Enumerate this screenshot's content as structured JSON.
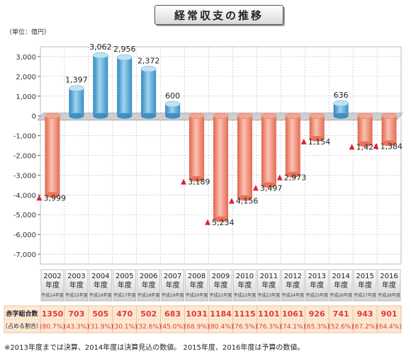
{
  "title": "経常収支の推移",
  "unit_label": "（単位：億円）",
  "footnote": "※2013年度までは決算、2014年度は決算見込の数値。 2015年度、2016年度は予算の数値。",
  "table": {
    "row1_label": "赤字組合数",
    "row2_label": "（占める割合）",
    "counts": [
      "1350",
      "703",
      "505",
      "470",
      "502",
      "683",
      "1031",
      "1184",
      "1115",
      "1101",
      "1061",
      "926",
      "741",
      "943",
      "901"
    ],
    "shares": [
      "(80.7%)",
      "(43.3%)",
      "(31.9%)",
      "(30.1%)",
      "(32.6%)",
      "(45.0%)",
      "(68.9%)",
      "(80.4%)",
      "(76.5%)",
      "(76.3%)",
      "(74.1%)",
      "(65.3%)",
      "(52.6%)",
      "(67.2%)",
      "(64.4%)"
    ]
  },
  "colors": {
    "positive": "#5aa9d6",
    "negative": "#ef8a74",
    "arrow": "#e0202a",
    "count_text": "#e03a3a",
    "table_bg": "#fde8d2",
    "grid": "#c9c9c9"
  },
  "chart_data": {
    "type": "bar",
    "title": "経常収支の推移",
    "ylabel": "（単位：億円）",
    "ylim": [
      -7500,
      3500
    ],
    "yticks": [
      3000,
      2000,
      1000,
      0,
      -1000,
      -2000,
      -3000,
      -4000,
      -5000,
      -6000,
      -7000
    ],
    "ytick_labels": [
      "3,000",
      "2,000",
      "1,000",
      "0",
      "-1,000",
      "-2,000",
      "-3,000",
      "-4,000",
      "-5,000",
      "-6,000",
      "-7,000"
    ],
    "grid": true,
    "categories": [
      "2002",
      "2003",
      "2004",
      "2005",
      "2006",
      "2007",
      "2008",
      "2009",
      "2010",
      "2011",
      "2012",
      "2013",
      "2014",
      "2015",
      "2016"
    ],
    "category_line2": "年度",
    "category_era": [
      "平成14年度",
      "平成15年度",
      "平成16年度",
      "平成17年度",
      "平成18年度",
      "平成19年度",
      "平成20年度",
      "平成21年度",
      "平成22年度",
      "平成23年度",
      "平成24年度",
      "平成25年度",
      "平成26年度",
      "平成27年度",
      "平成28年度"
    ],
    "values": [
      -3999,
      1397,
      3062,
      2956,
      2372,
      600,
      -3189,
      -5234,
      -4156,
      -3497,
      -2973,
      -1154,
      636,
      -1424,
      -1384
    ],
    "value_labels": [
      "3,999",
      "1,397",
      "3,062",
      "2,956",
      "2,372",
      "600",
      "3,189",
      "5,234",
      "4,156",
      "3,497",
      "2,973",
      "1,154",
      "636",
      "1,424",
      "1,384"
    ]
  }
}
